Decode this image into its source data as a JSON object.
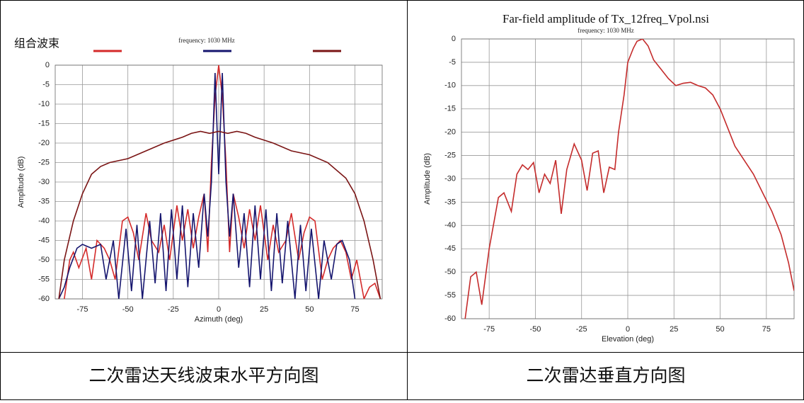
{
  "chart_data": [
    {
      "type": "line",
      "title": "组合波束",
      "subtitle": "frequency: 1030 MHz",
      "x_label": "Azimuth (deg)",
      "y_label": "Amplitude (dB)",
      "xlim": [
        -90,
        90
      ],
      "xticks": [
        -75,
        -50,
        -25,
        0,
        25,
        50,
        75
      ],
      "ylim": [
        -60,
        0
      ],
      "yticks": [
        0,
        -5,
        -10,
        -15,
        -20,
        -25,
        -30,
        -35,
        -40,
        -45,
        -50,
        -55,
        -60
      ],
      "grid": true,
      "series": [
        {
          "color": "#d42a2a",
          "x": [
            -85,
            -82,
            -80,
            -77,
            -73,
            -70,
            -67,
            -63,
            -60,
            -57,
            -53,
            -50,
            -47,
            -44,
            -40,
            -37,
            -33,
            -30,
            -27,
            -23,
            -20,
            -17,
            -14,
            -11,
            -8,
            -6,
            -4,
            -2,
            0,
            2,
            4,
            6,
            8,
            11,
            14,
            17,
            20,
            23,
            27,
            30,
            33,
            37,
            40,
            44,
            47,
            50,
            53,
            57,
            60,
            63,
            67,
            70,
            73,
            76,
            80,
            83,
            86,
            89
          ],
          "values": [
            -60,
            -50,
            -48,
            -52,
            -47,
            -55,
            -45,
            -47,
            -50,
            -55,
            -40,
            -39,
            -43,
            -50,
            -38,
            -45,
            -48,
            -41,
            -50,
            -36,
            -45,
            -37,
            -47,
            -39,
            -33,
            -48,
            -25,
            -8,
            0,
            -8,
            -25,
            -48,
            -33,
            -39,
            -47,
            -37,
            -45,
            -36,
            -50,
            -41,
            -48,
            -45,
            -38,
            -50,
            -43,
            -39,
            -40,
            -55,
            -50,
            -47,
            -45,
            -48,
            -55,
            -50,
            -60,
            -57,
            -56,
            -60
          ]
        },
        {
          "color": "#15156e",
          "x": [
            -88,
            -85,
            -82,
            -78,
            -75,
            -70,
            -65,
            -62,
            -58,
            -55,
            -51,
            -48,
            -45,
            -42,
            -38,
            -35,
            -32,
            -29,
            -26,
            -23,
            -20,
            -17,
            -14,
            -11,
            -8,
            -6,
            -4,
            -2,
            0,
            2,
            4,
            6,
            8,
            11,
            14,
            17,
            20,
            23,
            26,
            29,
            32,
            35,
            38,
            42,
            45,
            48,
            51,
            55,
            58,
            62,
            65,
            68,
            72,
            75
          ],
          "values": [
            -60,
            -57,
            -52,
            -47,
            -46,
            -47,
            -46,
            -55,
            -45,
            -60,
            -42,
            -58,
            -41,
            -60,
            -40,
            -56,
            -38,
            -58,
            -37,
            -55,
            -36,
            -57,
            -38,
            -52,
            -33,
            -44,
            -30,
            -2,
            -28,
            -2,
            -30,
            -44,
            -33,
            -52,
            -38,
            -57,
            -36,
            -55,
            -37,
            -58,
            -38,
            -56,
            -40,
            -60,
            -41,
            -58,
            -42,
            -60,
            -45,
            -55,
            -46,
            -45,
            -50,
            -60
          ]
        },
        {
          "color": "#7a1414",
          "x": [
            -88,
            -85,
            -80,
            -75,
            -70,
            -65,
            -60,
            -50,
            -40,
            -30,
            -20,
            -15,
            -10,
            -5,
            0,
            5,
            10,
            15,
            20,
            30,
            40,
            50,
            60,
            70,
            75,
            80,
            85,
            89
          ],
          "values": [
            -60,
            -50,
            -40,
            -33,
            -28,
            -26,
            -25,
            -24,
            -22,
            -20,
            -18.5,
            -17.5,
            -17,
            -17.5,
            -17,
            -17.5,
            -17,
            -17.5,
            -18.5,
            -20,
            -22,
            -23,
            -25,
            -29,
            -33,
            -40,
            -50,
            -60
          ]
        }
      ]
    },
    {
      "type": "line",
      "title": "Far-field amplitude of Tx_12freq_Vpol.nsi",
      "subtitle": "frequency: 1030 MHz",
      "x_label": "Elevation (deg)",
      "y_label": "Amplitude (dB)",
      "xlim": [
        -90,
        90
      ],
      "xticks": [
        -75,
        -50,
        -25,
        0,
        25,
        50,
        75
      ],
      "ylim": [
        -60,
        0
      ],
      "yticks": [
        0,
        -5,
        -10,
        -15,
        -20,
        -25,
        -30,
        -35,
        -40,
        -45,
        -50,
        -55,
        -60
      ],
      "grid": true,
      "series": [
        {
          "color": "#c42b2b",
          "x": [
            -88,
            -85,
            -82,
            -79,
            -75,
            -70,
            -67,
            -63,
            -60,
            -57,
            -54,
            -51,
            -48,
            -45,
            -42,
            -39,
            -36,
            -33,
            -29,
            -25,
            -22,
            -19,
            -16,
            -13,
            -10,
            -7,
            -5,
            -2,
            0,
            3,
            5,
            8,
            11,
            14,
            18,
            22,
            26,
            30,
            34,
            38,
            42,
            46,
            50,
            54,
            58,
            63,
            68,
            73,
            78,
            83,
            87,
            90
          ],
          "values": [
            -60,
            -51,
            -50,
            -57,
            -45,
            -34,
            -33,
            -37,
            -29,
            -27,
            -28,
            -26.5,
            -33,
            -29,
            -31,
            -26,
            -37.5,
            -28,
            -22.5,
            -26,
            -32.5,
            -24.5,
            -24,
            -33,
            -27.5,
            -28,
            -20,
            -12,
            -5,
            -2,
            -0.5,
            0,
            -1.5,
            -4.5,
            -6.5,
            -8.5,
            -10,
            -9.5,
            -9.3,
            -10,
            -10.5,
            -12,
            -15,
            -19,
            -23,
            -26,
            -29,
            -33,
            -37,
            -42,
            -48,
            -54
          ]
        }
      ]
    }
  ],
  "table": {
    "captions": [
      "二次雷达天线波束水平方向图",
      "二次雷达垂直方向图"
    ]
  }
}
